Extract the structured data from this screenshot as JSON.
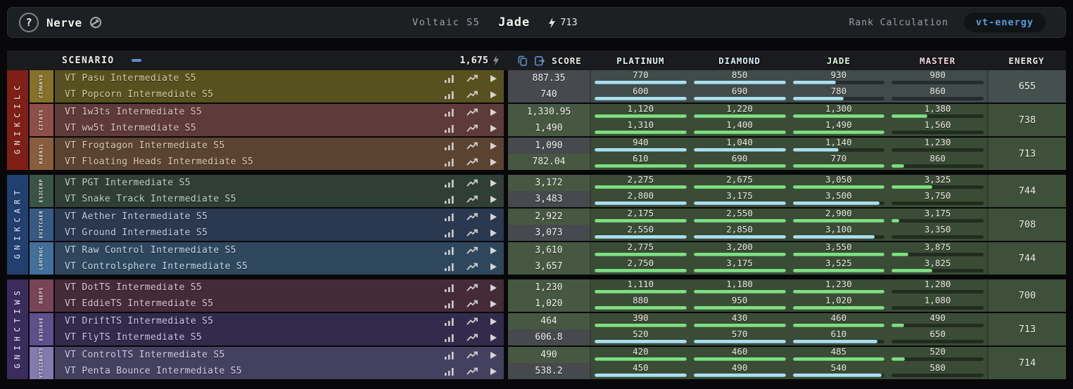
{
  "topbar": {
    "help_label": "?",
    "brand": "Nerve",
    "season": "Voltaic S5",
    "rank": "Jade",
    "energy": "713",
    "rank_calc_label": "Rank Calculation",
    "rank_calc_value": "vt-energy"
  },
  "table_header": {
    "scenario": "SCENARIO",
    "total_energy": "1,675",
    "score": "SCORE",
    "columns": [
      "PLATINUM",
      "DIAMOND",
      "JADE",
      "MASTER"
    ],
    "column_colors": [
      "#e3f2f4",
      "#d8ecf8",
      "#dbf2de",
      "#f2d8de"
    ],
    "energy": "ENERGY"
  },
  "colors": {
    "accent_blue": "#5e8fc9",
    "link_blue": "#4f9fe0",
    "diamond_fill": "#aadff2",
    "jade_fill": "#7de082",
    "diamond_cell": "#46494d",
    "jade_cell": "#465841",
    "diamond_pair_bg": "#414c4a",
    "jade_pair_bg": "#3a4c35"
  },
  "categories": [
    {
      "label": "CLICKING",
      "strip": "#7e2017",
      "label_color": "#f0b4a8",
      "subgroups": [
        {
          "label": "DYNAMIC",
          "strip": "#857228",
          "row_bg": "#56511f",
          "name_color": "#d9d0a4",
          "tier": "diamond",
          "energy": "655",
          "scenarios": [
            {
              "name": "VT Pasu Intermediate S5",
              "score": "887.35",
              "thresholds": [
                "770",
                "850",
                "930",
                "980"
              ]
            },
            {
              "name": "VT Popcorn Intermediate S5",
              "score": "740",
              "thresholds": [
                "600",
                "690",
                "780",
                "860"
              ]
            }
          ]
        },
        {
          "label": "STATIC",
          "strip": "#8d4f47",
          "row_bg": "#5e3a39",
          "name_color": "#e3c9c4",
          "tier": "jade",
          "energy": "738",
          "scenarios": [
            {
              "name": "VT 1w3ts Intermediate S5",
              "score": "1,330.95",
              "thresholds": [
                "1,120",
                "1,220",
                "1,300",
                "1,380"
              ]
            },
            {
              "name": "VT ww5t Intermediate S5",
              "score": "1,490",
              "thresholds": [
                "1,310",
                "1,400",
                "1,490",
                "1,560"
              ]
            }
          ]
        },
        {
          "label": "LINEAR",
          "strip": "#8a5e3c",
          "row_bg": "#5b4331",
          "name_color": "#e2cfb8",
          "tier": "jade",
          "energy": "713",
          "scenarios": [
            {
              "name": "VT Frogtagon Intermediate S5",
              "score": "1,090",
              "thresholds": [
                "940",
                "1,040",
                "1,140",
                "1,230"
              ]
            },
            {
              "name": "VT Floating Heads Intermediate S5",
              "score": "782.04",
              "thresholds": [
                "610",
                "690",
                "770",
                "860"
              ]
            }
          ]
        }
      ]
    },
    {
      "label": "TRACKING",
      "strip": "#21406f",
      "label_color": "#b4c8f0",
      "subgroups": [
        {
          "label": "PRECISE",
          "strip": "#3a5349",
          "row_bg": "#2f3f38",
          "name_color": "#c6d6cc",
          "tier": "jade",
          "energy": "744",
          "scenarios": [
            {
              "name": "VT PGT Intermediate S5",
              "score": "3,172",
              "thresholds": [
                "2,275",
                "2,675",
                "3,050",
                "3,325"
              ]
            },
            {
              "name": "VT Snake Track Intermediate S5",
              "score": "3,483",
              "thresholds": [
                "2,800",
                "3,175",
                "3,500",
                "3,750"
              ]
            }
          ]
        },
        {
          "label": "REACTIVE",
          "strip": "#375a85",
          "row_bg": "#2a3850",
          "name_color": "#c2d2e6",
          "tier": "jade",
          "energy": "708",
          "scenarios": [
            {
              "name": "VT Aether Intermediate S5",
              "score": "2,922",
              "thresholds": [
                "2,175",
                "2,550",
                "2,900",
                "3,175"
              ]
            },
            {
              "name": "VT Ground Intermediate S5",
              "score": "3,073",
              "thresholds": [
                "2,550",
                "2,850",
                "3,100",
                "3,350"
              ]
            }
          ]
        },
        {
          "label": "CONTROL",
          "strip": "#40719c",
          "row_bg": "#2f475d",
          "name_color": "#c6dcec",
          "tier": "jade",
          "energy": "744",
          "scenarios": [
            {
              "name": "VT Raw Control Intermediate S5",
              "score": "3,610",
              "thresholds": [
                "2,775",
                "3,200",
                "3,550",
                "3,875"
              ]
            },
            {
              "name": "VT Controlsphere Intermediate S5",
              "score": "3,657",
              "thresholds": [
                "2,750",
                "3,175",
                "3,525",
                "3,825"
              ]
            }
          ]
        }
      ]
    },
    {
      "label": "SWITCHING",
      "strip": "#3a2c5c",
      "label_color": "#ccc0ee",
      "subgroups": [
        {
          "label": "SPEED",
          "strip": "#7a4457",
          "row_bg": "#452b38",
          "name_color": "#e0c6d0",
          "tier": "jade",
          "energy": "700",
          "scenarios": [
            {
              "name": "VT DotTS Intermediate S5",
              "score": "1,230",
              "thresholds": [
                "1,110",
                "1,180",
                "1,230",
                "1,280"
              ]
            },
            {
              "name": "VT EddieTS Intermediate S5",
              "score": "1,020",
              "thresholds": [
                "880",
                "950",
                "1,020",
                "1,080"
              ]
            }
          ]
        },
        {
          "label": "EVASIVE",
          "strip": "#5d508d",
          "row_bg": "#322b4b",
          "name_color": "#cfc8e8",
          "tier": "jade",
          "energy": "713",
          "scenarios": [
            {
              "name": "VT DriftTS Intermediate S5",
              "score": "464",
              "thresholds": [
                "390",
                "430",
                "460",
                "490"
              ]
            },
            {
              "name": "VT FlyTS Intermediate S5",
              "score": "606.8",
              "thresholds": [
                "520",
                "570",
                "610",
                "650"
              ]
            }
          ]
        },
        {
          "label": "STABILITY",
          "strip": "#837aae",
          "row_bg": "#444060",
          "name_color": "#d8d4ec",
          "tier": "jade",
          "energy": "714",
          "scenarios": [
            {
              "name": "VT ControlTS Intermediate S5",
              "score": "490",
              "thresholds": [
                "420",
                "460",
                "485",
                "520"
              ]
            },
            {
              "name": "VT Penta Bounce Intermediate S5",
              "score": "538.2",
              "thresholds": [
                "450",
                "490",
                "540",
                "580"
              ]
            }
          ]
        }
      ]
    }
  ]
}
